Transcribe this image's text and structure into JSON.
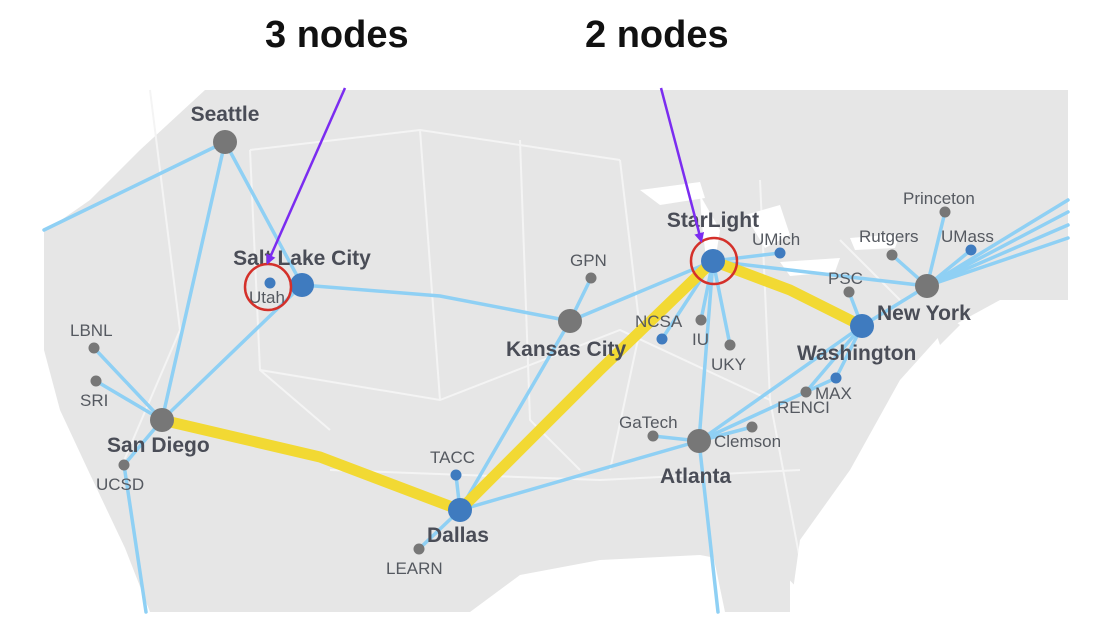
{
  "callouts": {
    "left": "3 nodes",
    "right": "2 nodes"
  },
  "colors": {
    "land": "#e6e6e6",
    "link": "#8fd0f4",
    "highlight_path": "#f2d933",
    "site_gray": "#777777",
    "site_blue": "#3f7bbf",
    "arrow": "#7b2cf0",
    "circle": "#d4302a"
  },
  "sites": {
    "seattle": "Seattle",
    "salt_lake_city": "Salt Lake City",
    "utah": "Utah",
    "lbnl": "LBNL",
    "sri": "SRI",
    "san_diego": "San Diego",
    "ucsd": "UCSD",
    "gpn": "GPN",
    "kansas_city": "Kansas City",
    "ncsa": "NCSA",
    "iu": "IU",
    "uky": "UKY",
    "starlight": "StarLight",
    "umich": "UMich",
    "princeton": "Princeton",
    "rutgers": "Rutgers",
    "umass": "UMass",
    "psc": "PSC",
    "new_york": "New York",
    "washington": "Washington",
    "max": "MAX",
    "renci": "RENCI",
    "gatech": "GaTech",
    "clemson": "Clemson",
    "atlanta": "Atlanta",
    "tacc": "TACC",
    "dallas": "Dallas",
    "learn": "LEARN"
  }
}
